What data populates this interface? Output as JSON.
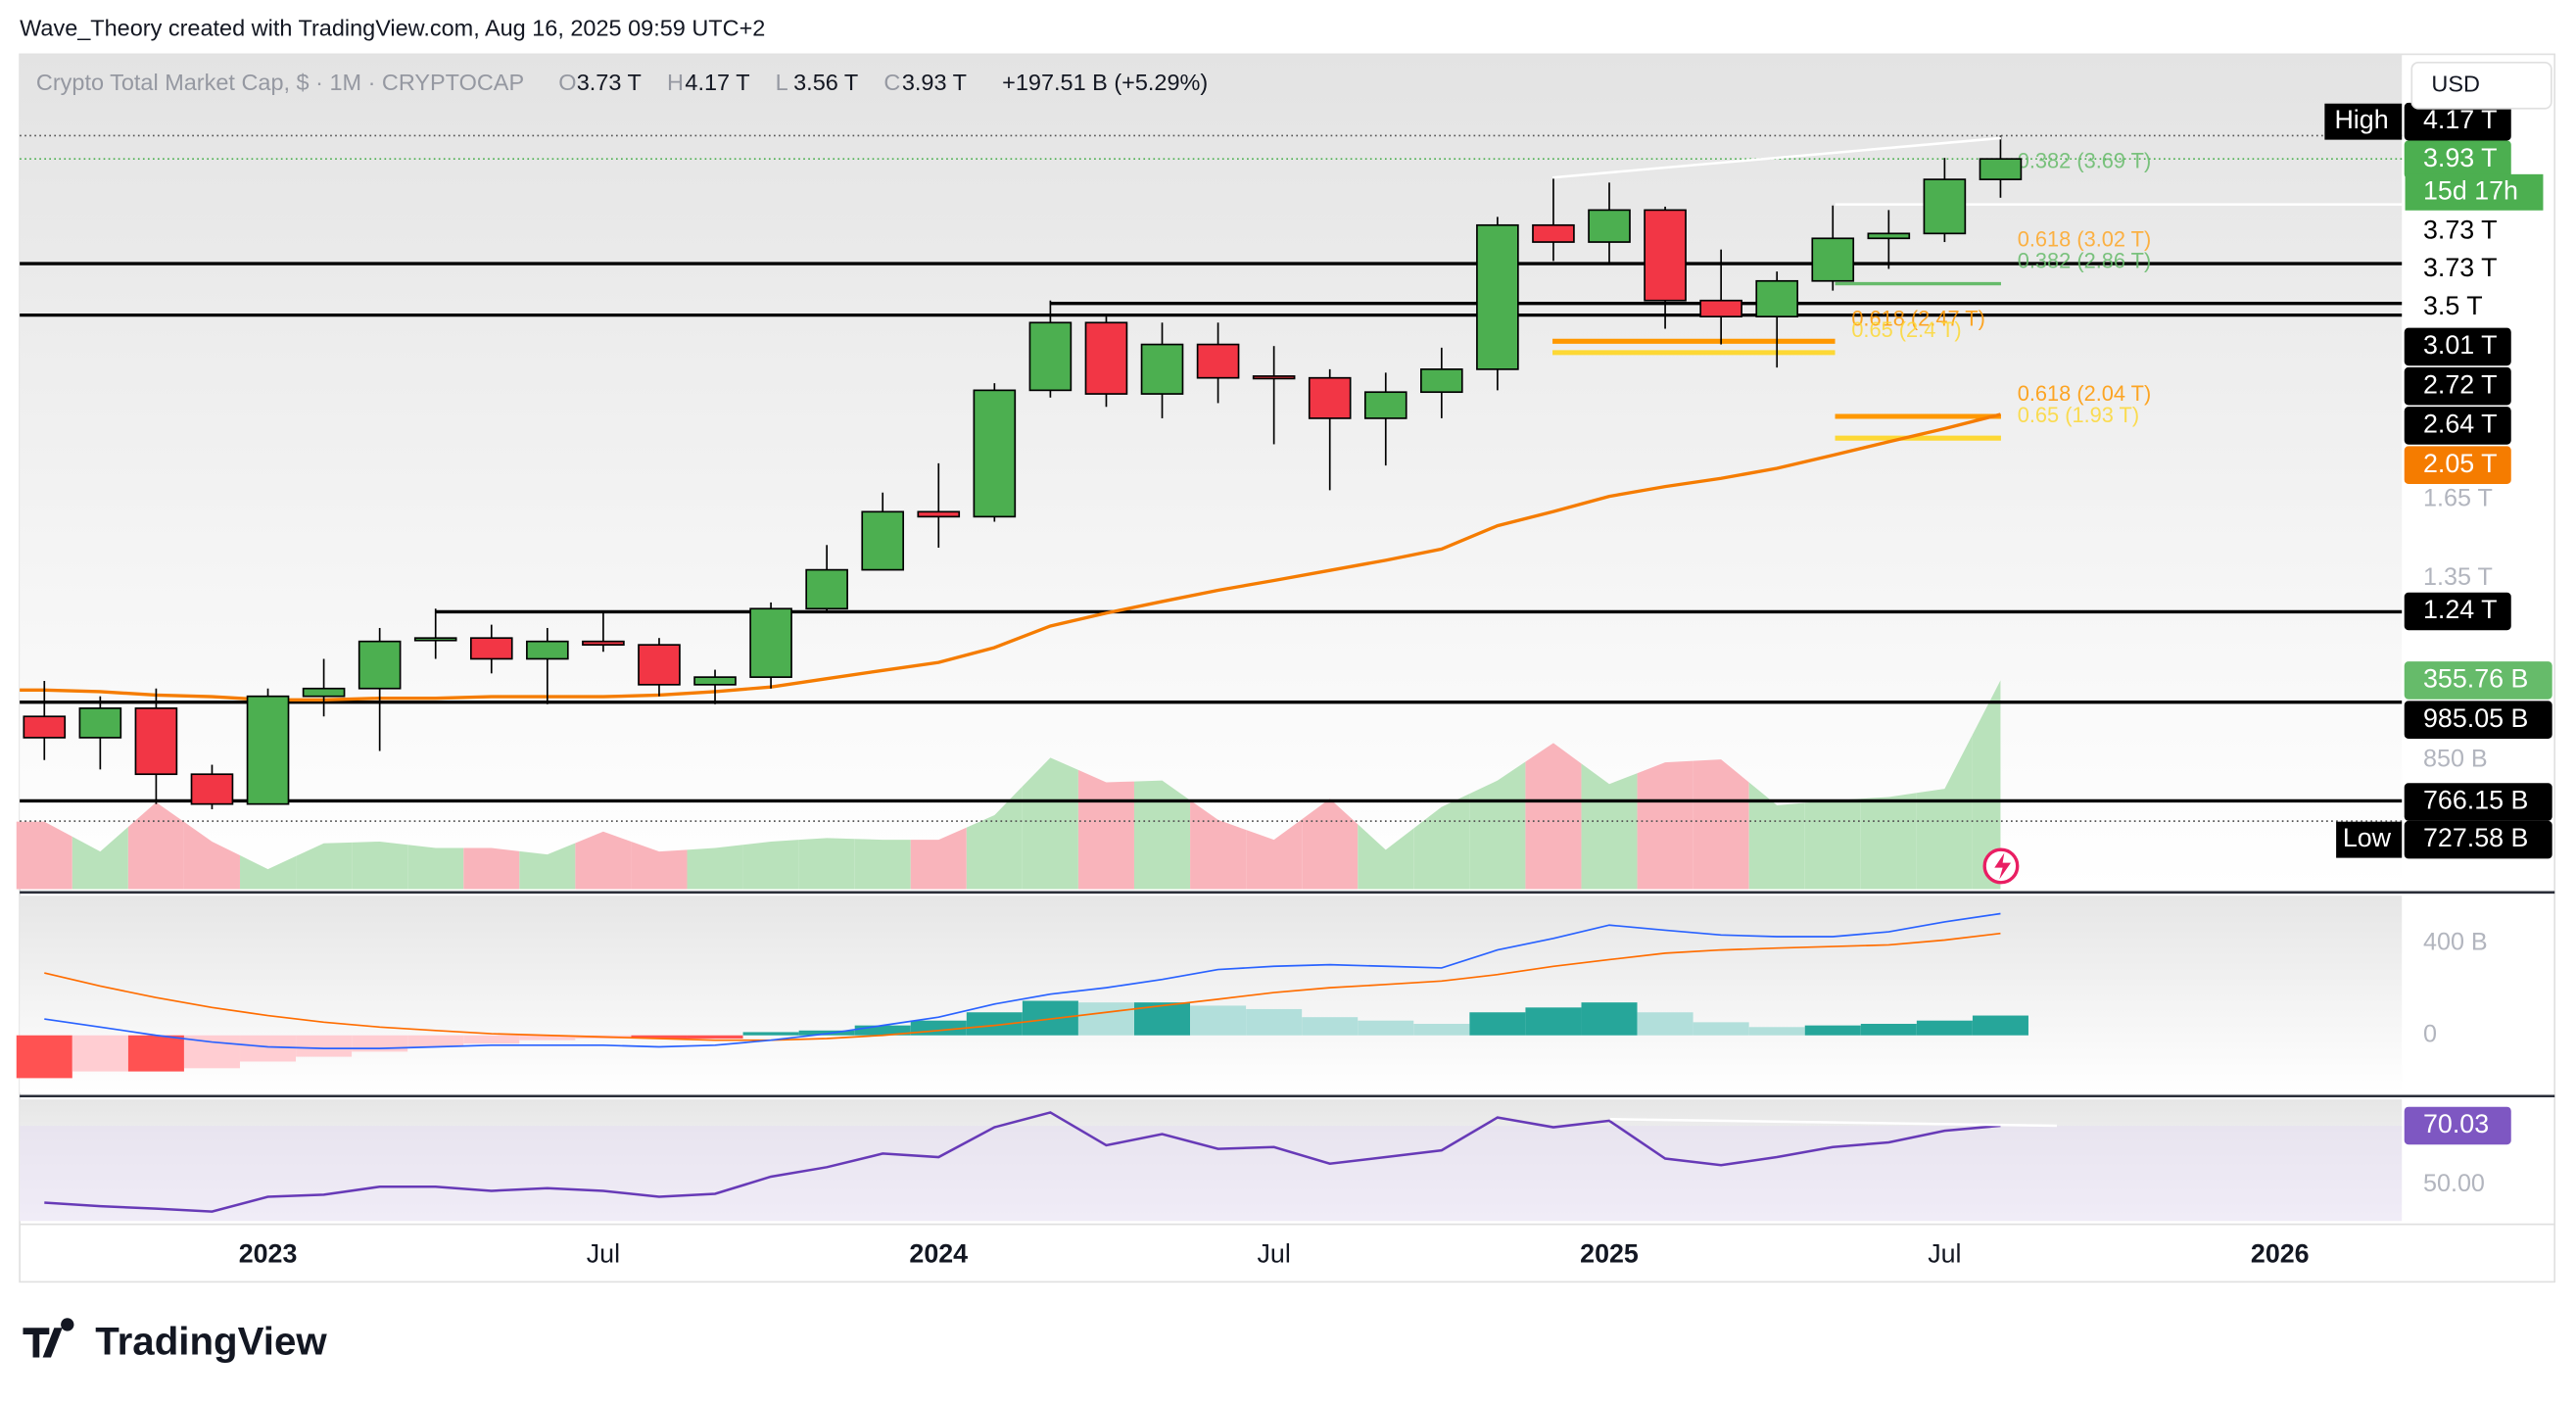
{
  "chart_data": {
    "type": "candlestick",
    "attribution": "Wave_Theory created with TradingView.com, Aug 16, 2025 09:59 UTC+2",
    "symbol": "Crypto Total Market Cap, $ · 1M · CRYPTOCAP",
    "ohlc": [
      {
        "key": "O",
        "value": "3.73 T"
      },
      {
        "key": "H",
        "value": "4.17 T"
      },
      {
        "key": "L",
        "value": "3.56 T"
      },
      {
        "key": "C",
        "value": "3.93 T"
      }
    ],
    "change": "+197.51 B (+5.29%)",
    "currency": "USD",
    "brand": "TradingView",
    "countdown": "15d 17h",
    "high_tag": "High",
    "low_tag": "Low",
    "x": [
      "2022-09",
      "2022-10",
      "2022-11",
      "2022-12",
      "2023-01",
      "2023-02",
      "2023-03",
      "2023-04",
      "2023-05",
      "2023-06",
      "2023-07",
      "2023-08",
      "2023-09",
      "2023-10",
      "2023-11",
      "2023-12",
      "2024-01",
      "2024-02",
      "2024-03",
      "2024-04",
      "2024-05",
      "2024-06",
      "2024-07",
      "2024-08",
      "2024-09",
      "2024-10",
      "2024-11",
      "2024-12",
      "2025-01",
      "2025-02",
      "2025-03",
      "2025-04",
      "2025-05",
      "2025-06",
      "2025-07",
      "2025-08"
    ],
    "xticks": [
      {
        "value": "2023-01",
        "label": "2023"
      },
      {
        "value": "2023-07",
        "label": "Jul"
      },
      {
        "value": "2024-01",
        "label": "2024"
      },
      {
        "value": "2024-07",
        "label": "Jul"
      },
      {
        "value": "2025-01",
        "label": "2025"
      },
      {
        "value": "2025-07",
        "label": "Jul"
      },
      {
        "value": "2026-01",
        "label": "2026"
      }
    ],
    "open": [
      0.95,
      0.9,
      0.97,
      0.82,
      0.76,
      1.0,
      1.02,
      1.16,
      1.16,
      1.1,
      1.15,
      1.14,
      1.03,
      1.05,
      1.25,
      1.38,
      1.6,
      1.58,
      2.18,
      2.59,
      2.16,
      2.45,
      2.26,
      2.25,
      2.03,
      2.17,
      2.3,
      3.32,
      3.18,
      3.45,
      2.74,
      2.63,
      2.88,
      3.21,
      3.25,
      3.73
    ],
    "high": [
      1.04,
      1.0,
      1.02,
      0.84,
      1.02,
      1.1,
      1.19,
      1.25,
      1.2,
      1.19,
      1.24,
      1.16,
      1.07,
      1.27,
      1.47,
      1.68,
      1.81,
      2.22,
      2.74,
      2.63,
      2.59,
      2.59,
      2.44,
      2.3,
      2.28,
      2.43,
      3.39,
      3.75,
      3.7,
      3.48,
      3.12,
      2.95,
      3.49,
      3.45,
      3.94,
      4.17
    ],
    "low": [
      0.85,
      0.83,
      0.76,
      0.75,
      0.76,
      0.95,
      0.87,
      1.1,
      1.06,
      0.98,
      1.12,
      1.0,
      0.98,
      1.02,
      1.24,
      1.38,
      1.46,
      1.56,
      2.14,
      2.09,
      2.03,
      2.11,
      1.9,
      1.69,
      1.8,
      2.03,
      2.18,
      3.03,
      3.02,
      2.55,
      2.45,
      2.31,
      2.81,
      2.97,
      3.18,
      3.56
    ],
    "close": [
      0.9,
      0.97,
      0.82,
      0.76,
      1.0,
      1.02,
      1.15,
      1.16,
      1.1,
      1.15,
      1.14,
      1.03,
      1.05,
      1.25,
      1.38,
      1.6,
      1.58,
      2.18,
      2.59,
      2.16,
      2.45,
      2.25,
      2.25,
      2.03,
      2.17,
      2.3,
      3.32,
      3.18,
      3.45,
      2.74,
      2.63,
      2.88,
      3.21,
      3.25,
      3.73,
      3.93
    ],
    "up_color": "#4caf50",
    "down_color": "#f23645",
    "ylim": [
      0.612,
      5.13
    ],
    "log_scale": true,
    "yticks": [
      {
        "value": 1.65,
        "label": "1.65 T"
      },
      {
        "value": 1.35,
        "label": "1.35 T"
      },
      {
        "value": 0.85,
        "label": "850 B"
      }
    ],
    "ema": {
      "color": "#f57c00",
      "values": [
        1.016,
        1.012,
        1.003,
        0.999,
        0.991,
        0.991,
        0.995,
        0.995,
        0.999,
        0.999,
        0.999,
        1.003,
        1.012,
        1.024,
        1.046,
        1.068,
        1.09,
        1.132,
        1.196,
        1.236,
        1.273,
        1.31,
        1.343,
        1.378,
        1.414,
        1.455,
        1.544,
        1.601,
        1.664,
        1.706,
        1.742,
        1.787,
        1.848,
        1.912,
        1.977,
        2.05
      ]
    },
    "volume": {
      "ylim": [
        0,
        1000
      ],
      "up_color": "#b9e2bb",
      "down_color": "#f9b4bb",
      "values": [
        115,
        64,
        148,
        81,
        34,
        78,
        81,
        70,
        70,
        59,
        98,
        64,
        70,
        81,
        87,
        84,
        84,
        126,
        224,
        182,
        185,
        118,
        84,
        154,
        67,
        140,
        185,
        249,
        179,
        216,
        221,
        143,
        151,
        157,
        171,
        355.76
      ]
    },
    "badges": [
      {
        "value": 4.17,
        "label": "4.17 T",
        "color": "#000000",
        "text_color": "#ffffff",
        "line": "dotted"
      },
      {
        "value": 3.93,
        "label": "3.93 T",
        "color": "#4caf50",
        "text_color": "#ffffff",
        "line": "dotted"
      },
      {
        "value": 3.73,
        "label": "3.73 T",
        "color": "#ffffff",
        "text_color": "#000000"
      },
      {
        "value": 3.73,
        "label": "3.73 T",
        "color": "#ffffff",
        "text_color": "#000000"
      },
      {
        "value": 3.5,
        "label": "3.5 T",
        "color": "#ffffff",
        "text_color": "#000000",
        "line": "white"
      },
      {
        "value": 3.01,
        "label": "3.01 T",
        "color": "#000000",
        "text_color": "#ffffff",
        "line": "solid"
      },
      {
        "value": 2.72,
        "label": "2.72 T",
        "color": "#000000",
        "text_color": "#ffffff",
        "line": "solid"
      },
      {
        "value": 2.64,
        "label": "2.64 T",
        "color": "#000000",
        "text_color": "#ffffff",
        "line": "solid"
      },
      {
        "value": 2.05,
        "label": "2.05 T",
        "color": "#f57c00",
        "text_color": "#ffffff"
      },
      {
        "value": 1.24,
        "label": "1.24 T",
        "color": "#000000",
        "text_color": "#ffffff",
        "line": "solid"
      },
      {
        "value": 355.76,
        "label": "355.76 B",
        "color": "#66bb6a",
        "text_color": "#ffffff",
        "axis": "volume"
      },
      {
        "value": 0.98505,
        "label": "985.05 B",
        "color": "#000000",
        "text_color": "#ffffff",
        "line": "solid"
      },
      {
        "value": 0.76615,
        "label": "766.15 B",
        "color": "#000000",
        "text_color": "#ffffff",
        "line": "solid"
      },
      {
        "value": 0.72758,
        "label": "727.58 B",
        "color": "#000000",
        "text_color": "#ffffff",
        "line": "dotted"
      },
      {
        "value": 70.03,
        "label": "70.03",
        "color": "#7e57c2",
        "text_color": "#ffffff",
        "axis": "rsi"
      }
    ],
    "fibs": [
      {
        "label": "0.382 (3.69 T)",
        "value": 3.69,
        "color": "#66bb6a"
      },
      {
        "label": "0.618 (3.02 T)",
        "value": 3.02,
        "color": "#ffa726"
      },
      {
        "label": "0.382 (2.86 T)",
        "value": 2.86,
        "color": "#66bb6a"
      },
      {
        "label": "0.618 (2.47 T)",
        "value": 2.47,
        "color": "#ff9800"
      },
      {
        "label": "0.65 (2.4 T)",
        "value": 2.4,
        "color": "#fdd835"
      },
      {
        "label": "0.618 (2.04 T)",
        "value": 2.04,
        "color": "#ff9800"
      },
      {
        "label": "0.65 (1.93 T)",
        "value": 1.93,
        "color": "#fdd835"
      }
    ],
    "macd": {
      "ylim": [
        -250,
        607
      ],
      "yticks": [
        {
          "value": 400,
          "label": "400 B"
        },
        0
      ],
      "histogram": [
        -186,
        -157,
        -157,
        -143,
        -114,
        -93,
        -71,
        -50,
        -36,
        -21,
        -14,
        -14,
        -14,
        14,
        21,
        43,
        64,
        100,
        150,
        143,
        143,
        129,
        114,
        79,
        64,
        50,
        100,
        121,
        143,
        100,
        57,
        36,
        43,
        50,
        64,
        86
      ],
      "macd_line": {
        "color": "#2962ff",
        "values": [
          71,
          36,
          0,
          -29,
          -50,
          -57,
          -57,
          -50,
          -43,
          -43,
          -43,
          -50,
          -43,
          -21,
          7,
          43,
          79,
          136,
          179,
          207,
          243,
          286,
          300,
          307,
          300,
          293,
          371,
          421,
          479,
          457,
          436,
          429,
          429,
          450,
          493,
          529
        ]
      },
      "signal_line": {
        "color": "#ff6d00",
        "values": [
          271,
          214,
          164,
          121,
          86,
          57,
          36,
          21,
          7,
          0,
          -7,
          -14,
          -21,
          -21,
          -14,
          0,
          21,
          43,
          71,
          100,
          129,
          157,
          186,
          207,
          221,
          236,
          264,
          300,
          329,
          357,
          371,
          379,
          386,
          393,
          414,
          443
        ]
      }
    },
    "rsi": {
      "ylim": [
        37.8,
        78.9
      ],
      "yticks": [
        {
          "value": 50,
          "label": "50.00"
        }
      ],
      "color": "#673ab7",
      "values": [
        44,
        42.8,
        42,
        41,
        46,
        46.7,
        49.4,
        49.4,
        48,
        48.9,
        48,
        46,
        47,
        52.8,
        56,
        60.6,
        59.4,
        69.5,
        74.5,
        63.4,
        67.2,
        62.2,
        62.8,
        57.2,
        59.4,
        61.7,
        72.8,
        69.5,
        71.7,
        58.9,
        56.7,
        59.4,
        62.8,
        64.4,
        68.3,
        70.03
      ]
    }
  }
}
